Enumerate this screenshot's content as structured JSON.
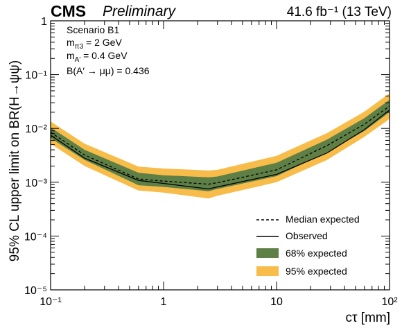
{
  "header": {
    "experiment": "CMS",
    "status": "Preliminary",
    "luminosity": "41.6 fb⁻¹ (13 TeV)"
  },
  "annotation": {
    "scenario": "Scenario B1",
    "m_pi3": "= 2 GeV",
    "m_A": "= 0.4 GeV",
    "br": "B(A′ → μμ) = 0.436"
  },
  "legend": {
    "median": "Median expected",
    "observed": "Observed",
    "band68": "68% expected",
    "band95": "95% expected"
  },
  "colors": {
    "band68": "#5e7f45",
    "band95": "#f7bc4a",
    "line": "#000000"
  },
  "chart_data": {
    "type": "line",
    "title": "",
    "xlabel": "cτ [mm]",
    "ylabel": "95% CL upper limit on BR(H→ψψ)",
    "xscale": "log",
    "yscale": "log",
    "xlim": [
      0.1,
      100
    ],
    "ylim": [
      1e-05,
      1
    ],
    "x_ticks": [
      "10⁻¹",
      "1",
      "10",
      "10²"
    ],
    "y_ticks": [
      "10⁻⁵",
      "10⁻⁴",
      "10⁻³",
      "10⁻²",
      "10⁻¹",
      "1"
    ],
    "legend_position": "bottom-right",
    "x": [
      0.1,
      0.2,
      0.6,
      1.0,
      2.5,
      3.0,
      10,
      28,
      60,
      100
    ],
    "series": [
      {
        "name": "Observed",
        "style": "solid",
        "values": [
          0.0075,
          0.0028,
          0.00108,
          0.00095,
          0.00075,
          0.00082,
          0.0014,
          0.0035,
          0.0095,
          0.022
        ]
      },
      {
        "name": "Median expected",
        "style": "dashed",
        "values": [
          0.0085,
          0.0032,
          0.00115,
          0.00105,
          0.00092,
          0.00098,
          0.0017,
          0.0048,
          0.012,
          0.026
        ]
      },
      {
        "name": "68% expected",
        "style": "band",
        "low": [
          0.0066,
          0.0026,
          0.00088,
          0.00082,
          0.00068,
          0.00075,
          0.0013,
          0.0036,
          0.009,
          0.02
        ],
        "high": [
          0.0105,
          0.004,
          0.0015,
          0.00135,
          0.00123,
          0.00128,
          0.0023,
          0.0062,
          0.0155,
          0.034
        ]
      },
      {
        "name": "95% expected",
        "style": "band",
        "low": [
          0.0052,
          0.002,
          0.0007,
          0.00064,
          0.0005,
          0.00056,
          0.001,
          0.0026,
          0.007,
          0.015
        ],
        "high": [
          0.0135,
          0.0052,
          0.00195,
          0.0018,
          0.00165,
          0.0017,
          0.0031,
          0.0082,
          0.0205,
          0.045
        ]
      }
    ]
  }
}
